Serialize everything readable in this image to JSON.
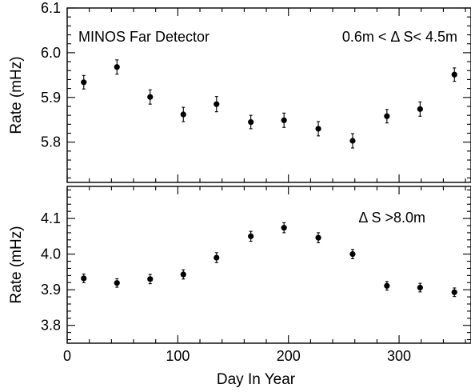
{
  "chart_data": [
    {
      "type": "scatter",
      "panel": "top",
      "annotation_left": "MINOS Far Detector",
      "annotation_right": "0.6m < Δ S< 4.5m",
      "xlabel": "",
      "ylabel": "Rate (mHz)",
      "xlim": [
        0,
        365
      ],
      "ylim": [
        5.71,
        6.1
      ],
      "yticks": [
        5.8,
        5.9,
        6.0,
        6.1
      ],
      "ytick_labels": [
        "5.8",
        "5.9",
        "6.0",
        "6.1"
      ],
      "grid": false,
      "x": [
        15,
        45,
        75,
        105,
        135,
        166,
        196,
        227,
        258,
        289,
        319,
        350
      ],
      "y": [
        5.934,
        5.968,
        5.901,
        5.862,
        5.885,
        5.845,
        5.849,
        5.83,
        5.803,
        5.858,
        5.874,
        5.951
      ],
      "yerr": [
        0.015,
        0.016,
        0.016,
        0.016,
        0.017,
        0.015,
        0.016,
        0.016,
        0.016,
        0.015,
        0.016,
        0.015
      ]
    },
    {
      "type": "scatter",
      "panel": "bottom",
      "annotation_right": "Δ S >8.0m",
      "xlabel": "Day In Year",
      "ylabel": "Rate (mHz)",
      "xlim": [
        0,
        365
      ],
      "ylim": [
        3.75,
        4.19
      ],
      "xticks": [
        0,
        100,
        200,
        300
      ],
      "xtick_labels": [
        "0",
        "100",
        "200",
        "300"
      ],
      "yticks": [
        3.8,
        3.9,
        4.0,
        4.1
      ],
      "ytick_labels": [
        "3.8",
        "3.9",
        "4.0",
        "4.1"
      ],
      "grid": false,
      "x": [
        15,
        45,
        75,
        105,
        135,
        166,
        196,
        227,
        258,
        289,
        319,
        350
      ],
      "y": [
        3.932,
        3.919,
        3.93,
        3.943,
        3.99,
        4.05,
        4.074,
        4.046,
        4.0,
        3.911,
        3.906,
        3.893
      ],
      "yerr": [
        0.012,
        0.012,
        0.013,
        0.013,
        0.014,
        0.014,
        0.014,
        0.014,
        0.013,
        0.012,
        0.012,
        0.012
      ]
    }
  ]
}
